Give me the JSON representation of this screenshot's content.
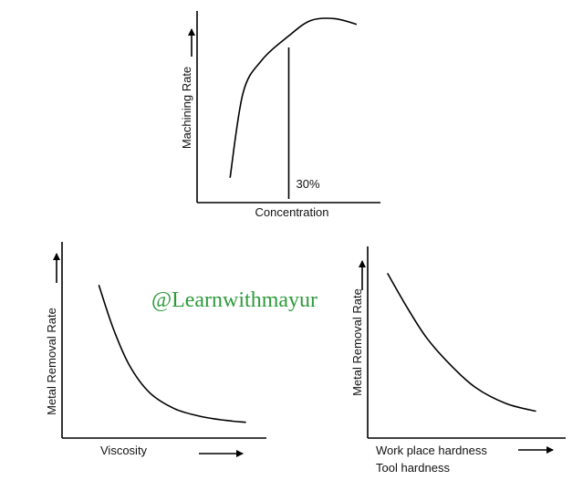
{
  "watermark": {
    "text": "@Learnwithmayur",
    "color": "#2e9a3c"
  },
  "colors": {
    "ink": "#000000",
    "background": "#ffffff"
  },
  "chart_data": [
    {
      "type": "line",
      "title": "",
      "xlabel": "Concentration",
      "ylabel": "Machining Rate",
      "axis_arrows": true,
      "ticks": false,
      "grid": false,
      "annotations": [
        {
          "text": "30%",
          "kind": "vertical-line",
          "x": 0.5
        }
      ],
      "series": [
        {
          "x": [
            0.18,
            0.25,
            0.35,
            0.5,
            0.62,
            0.75,
            0.87
          ],
          "values": [
            0.13,
            0.57,
            0.74,
            0.87,
            0.95,
            0.96,
            0.93
          ]
        }
      ]
    },
    {
      "type": "line",
      "title": "",
      "xlabel": "Viscosity",
      "ylabel": "Metal Removal Rate",
      "axis_arrows": true,
      "ticks": false,
      "grid": false,
      "series": [
        {
          "x": [
            0.18,
            0.25,
            0.33,
            0.43,
            0.55,
            0.68,
            0.8,
            0.9
          ],
          "values": [
            0.78,
            0.56,
            0.37,
            0.23,
            0.15,
            0.11,
            0.09,
            0.08
          ]
        }
      ]
    },
    {
      "type": "line",
      "title": "",
      "xlabel": "Work place hardness",
      "xlabel2": "Tool hardness",
      "ylabel": "Metal Removal Rate",
      "axis_arrows": true,
      "ticks": false,
      "grid": false,
      "series": [
        {
          "x": [
            0.1,
            0.2,
            0.3,
            0.42,
            0.55,
            0.7,
            0.85
          ],
          "values": [
            0.86,
            0.68,
            0.52,
            0.38,
            0.26,
            0.18,
            0.14
          ]
        }
      ]
    }
  ]
}
